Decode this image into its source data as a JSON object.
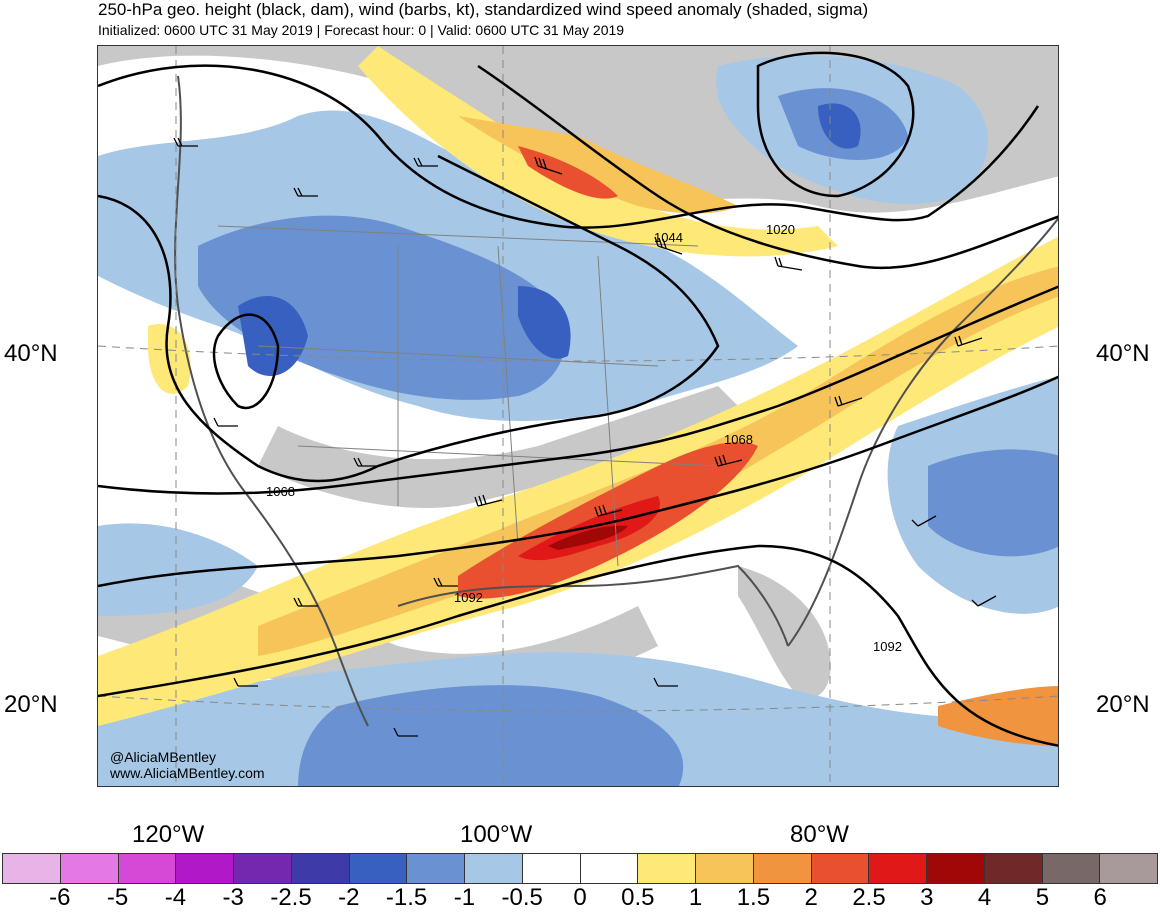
{
  "title": "250-hPa geo. height (black, dam), wind (barbs, kt), standardized wind speed anomaly (shaded, sigma)",
  "subtitle": "Initialized: 0600 UTC 31 May 2019 | Forecast hour: 0 | Valid: 0600 UTC 31 May 2019",
  "lat_labels": [
    "40°N",
    "20°N"
  ],
  "lon_labels": [
    "120°W",
    "100°W",
    "80°W"
  ],
  "contour_labels": [
    "1020",
    "1044",
    "1068",
    "1068",
    "1092",
    "1092"
  ],
  "credit": {
    "handle": "@AliciaMBentley",
    "website": "www.AliciaMBentley.com"
  },
  "colorbar": {
    "colors": [
      "#e8b4e8",
      "#e478e4",
      "#d648d6",
      "#b018c8",
      "#7428b0",
      "#3e3aa8",
      "#3860c0",
      "#6a92d2",
      "#a6c8e6",
      "#ffffff",
      "#ffffff",
      "#fde878",
      "#f6c458",
      "#f09440",
      "#e85030",
      "#e01818",
      "#a00808",
      "#702828",
      "#786868",
      "#a89a9a"
    ],
    "ticks": [
      "-6",
      "-5",
      "-4",
      "-3",
      "-2.5",
      "-2",
      "-1.5",
      "-1",
      "-0.5",
      "0",
      "0.5",
      "1",
      "1.5",
      "2",
      "2.5",
      "3",
      "4",
      "5",
      "6"
    ]
  },
  "palette": {
    "land_gray": "#c8c8c8",
    "coast": "#505050",
    "contour": "#000000"
  }
}
